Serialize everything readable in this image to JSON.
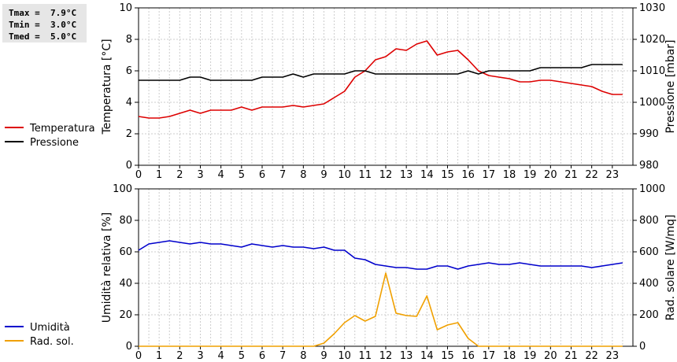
{
  "stats": [
    {
      "label": "Tmax =",
      "value": "7.9°C"
    },
    {
      "label": "Tmin =",
      "value": "3.0°C"
    },
    {
      "label": "Tmed =",
      "value": "5.0°C"
    }
  ],
  "colors": {
    "temperature": "#dd0000",
    "pressure": "#000000",
    "humidity": "#0000cc",
    "solar": "#f0a000",
    "grid": "#cccccc",
    "frame": "#000000"
  },
  "chart_data": [
    {
      "type": "line",
      "xlabel": "",
      "ylabel_left": "Temperatura [°C]",
      "ylabel_right": "Pressione [mbar]",
      "xlim": [
        0,
        24
      ],
      "ylim_left": [
        0,
        10
      ],
      "ylim_right": [
        980,
        1030
      ],
      "x_ticks": [
        "0",
        "1",
        "2",
        "3",
        "4",
        "5",
        "6",
        "7",
        "8",
        "9",
        "10",
        "11",
        "12",
        "13",
        "14",
        "15",
        "16",
        "17",
        "18",
        "19",
        "20",
        "21",
        "22",
        "23"
      ],
      "y_ticks_left": [
        "0",
        "2",
        "4",
        "6",
        "8",
        "10"
      ],
      "y_ticks_right": [
        "980",
        "990",
        "1000",
        "1010",
        "1020",
        "1030"
      ],
      "grid": true,
      "legend": "left",
      "series": [
        {
          "name": "Temperatura",
          "axis": "left",
          "color": "#dd0000",
          "x": [
            0,
            0.5,
            1,
            1.5,
            2,
            2.5,
            3,
            3.5,
            4,
            4.5,
            5,
            5.5,
            6,
            6.5,
            7,
            7.5,
            8,
            8.5,
            9,
            9.5,
            10,
            10.5,
            11,
            11.5,
            12,
            12.5,
            13,
            13.5,
            14,
            14.5,
            15,
            15.5,
            16,
            16.5,
            17,
            17.5,
            18,
            18.5,
            19,
            19.5,
            20,
            20.5,
            21,
            21.5,
            22,
            22.5,
            23,
            23.5
          ],
          "values": [
            3.1,
            3.0,
            3.0,
            3.1,
            3.3,
            3.5,
            3.3,
            3.5,
            3.5,
            3.5,
            3.7,
            3.5,
            3.7,
            3.7,
            3.7,
            3.8,
            3.7,
            3.8,
            3.9,
            4.3,
            4.7,
            5.6,
            6.0,
            6.7,
            6.9,
            7.4,
            7.3,
            7.7,
            7.9,
            7.0,
            7.2,
            7.3,
            6.7,
            6.0,
            5.7,
            5.6,
            5.5,
            5.3,
            5.3,
            5.4,
            5.4,
            5.3,
            5.2,
            5.1,
            5.0,
            4.7,
            4.5,
            4.5
          ]
        },
        {
          "name": "Pressione",
          "axis": "right",
          "color": "#000000",
          "x": [
            0,
            0.5,
            1,
            1.5,
            2,
            2.5,
            3,
            3.5,
            4,
            4.5,
            5,
            5.5,
            6,
            6.5,
            7,
            7.5,
            8,
            8.5,
            9,
            9.5,
            10,
            10.5,
            11,
            11.5,
            12,
            12.5,
            13,
            13.5,
            14,
            14.5,
            15,
            15.5,
            16,
            16.5,
            17,
            17.5,
            18,
            18.5,
            19,
            19.5,
            20,
            20.5,
            21,
            21.5,
            22,
            22.5,
            23,
            23.5
          ],
          "values": [
            1007,
            1007,
            1007,
            1007,
            1007,
            1008,
            1008,
            1007,
            1007,
            1007,
            1007,
            1007,
            1008,
            1008,
            1008,
            1009,
            1008,
            1009,
            1009,
            1009,
            1009,
            1010,
            1010,
            1009,
            1009,
            1009,
            1009,
            1009,
            1009,
            1009,
            1009,
            1009,
            1010,
            1009,
            1010,
            1010,
            1010,
            1010,
            1010,
            1011,
            1011,
            1011,
            1011,
            1011,
            1012,
            1012,
            1012,
            1012
          ]
        }
      ]
    },
    {
      "type": "line",
      "xlabel": "",
      "ylabel_left": "Umidità relativa [%]",
      "ylabel_right": "Rad. solare [W/mq]",
      "xlim": [
        0,
        24
      ],
      "ylim_left": [
        0,
        100
      ],
      "ylim_right": [
        0,
        1000
      ],
      "x_ticks": [
        "0",
        "1",
        "2",
        "3",
        "4",
        "5",
        "6",
        "7",
        "8",
        "9",
        "10",
        "11",
        "12",
        "13",
        "14",
        "15",
        "16",
        "17",
        "18",
        "19",
        "20",
        "21",
        "22",
        "23"
      ],
      "y_ticks_left": [
        "0",
        "20",
        "40",
        "60",
        "80",
        "100"
      ],
      "y_ticks_right": [
        "0",
        "200",
        "400",
        "600",
        "800",
        "1000"
      ],
      "grid": true,
      "legend": "left",
      "series": [
        {
          "name": "Umidità",
          "axis": "left",
          "color": "#0000cc",
          "x": [
            0,
            0.5,
            1,
            1.5,
            2,
            2.5,
            3,
            3.5,
            4,
            4.5,
            5,
            5.5,
            6,
            6.5,
            7,
            7.5,
            8,
            8.5,
            9,
            9.5,
            10,
            10.5,
            11,
            11.5,
            12,
            12.5,
            13,
            13.5,
            14,
            14.5,
            15,
            15.5,
            16,
            16.5,
            17,
            17.5,
            18,
            18.5,
            19,
            19.5,
            20,
            20.5,
            21,
            21.5,
            22,
            22.5,
            23,
            23.5
          ],
          "values": [
            61,
            65,
            66,
            67,
            66,
            65,
            66,
            65,
            65,
            64,
            63,
            65,
            64,
            63,
            64,
            63,
            63,
            62,
            63,
            61,
            61,
            56,
            55,
            52,
            51,
            50,
            50,
            49,
            49,
            51,
            51,
            49,
            51,
            52,
            53,
            52,
            52,
            53,
            52,
            51,
            51,
            51,
            51,
            51,
            50,
            51,
            52,
            53
          ]
        },
        {
          "name": "Rad. sol.",
          "axis": "right",
          "color": "#f0a000",
          "x": [
            0,
            0.5,
            1,
            1.5,
            2,
            2.5,
            3,
            3.5,
            4,
            4.5,
            5,
            5.5,
            6,
            6.5,
            7,
            7.5,
            8,
            8.5,
            9,
            9.5,
            10,
            10.5,
            11,
            11.5,
            12,
            12.5,
            13,
            13.5,
            14,
            14.5,
            15,
            15.5,
            16,
            16.5,
            17,
            17.5,
            18,
            18.5,
            19,
            19.5,
            20,
            20.5,
            21,
            21.5,
            22,
            22.5,
            23,
            23.5
          ],
          "values": [
            0,
            0,
            0,
            0,
            0,
            0,
            0,
            0,
            0,
            0,
            0,
            0,
            0,
            0,
            0,
            0,
            0,
            0,
            20,
            80,
            150,
            195,
            160,
            190,
            465,
            210,
            195,
            190,
            320,
            105,
            135,
            150,
            50,
            0,
            0,
            0,
            0,
            0,
            0,
            0,
            0,
            0,
            0,
            0,
            0,
            0,
            0,
            0
          ]
        }
      ]
    }
  ]
}
